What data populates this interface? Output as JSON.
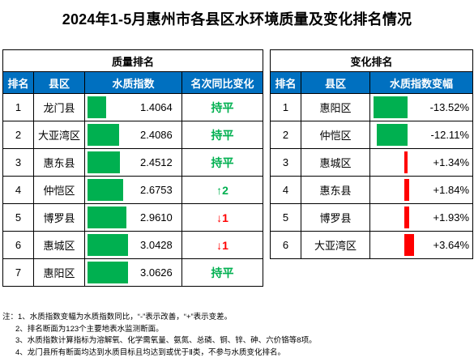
{
  "title": "2024年1-5月惠州市各县区水环境质量及变化排名情况",
  "colors": {
    "header_bg": "#0070c0",
    "bar_green": "#00b050",
    "bar_red": "#ff0000",
    "text_flat": "#00b050",
    "text_down": "#ff0000"
  },
  "left": {
    "section": "质量排名",
    "headers": [
      "排名",
      "县区",
      "水质指数",
      "名次同比变化"
    ],
    "rows": [
      {
        "rank": "1",
        "district": "龙门县",
        "index": "1.4064",
        "value": 1.4064,
        "change": "持平",
        "change_type": "flat"
      },
      {
        "rank": "2",
        "district": "大亚湾区",
        "index": "2.4086",
        "value": 2.4086,
        "change": "持平",
        "change_type": "flat"
      },
      {
        "rank": "3",
        "district": "惠东县",
        "index": "2.4512",
        "value": 2.4512,
        "change": "持平",
        "change_type": "flat"
      },
      {
        "rank": "4",
        "district": "仲恺区",
        "index": "2.6753",
        "value": 2.6753,
        "change": "↑2",
        "change_type": "up"
      },
      {
        "rank": "5",
        "district": "博罗县",
        "index": "2.9610",
        "value": 2.961,
        "change": "↓1",
        "change_type": "down"
      },
      {
        "rank": "6",
        "district": "惠城区",
        "index": "3.0428",
        "value": 3.0428,
        "change": "↓1",
        "change_type": "down"
      },
      {
        "rank": "7",
        "district": "惠阳区",
        "index": "3.0626",
        "value": 3.0626,
        "change": "持平",
        "change_type": "flat"
      }
    ]
  },
  "right": {
    "section": "变化排名",
    "headers": [
      "排名",
      "县区",
      "水质指数变幅"
    ],
    "rows": [
      {
        "rank": "1",
        "district": "惠阳区",
        "change": "-13.52%",
        "value": -13.52
      },
      {
        "rank": "2",
        "district": "仲恺区",
        "change": "-12.11%",
        "value": -12.11
      },
      {
        "rank": "3",
        "district": "惠城区",
        "change": "+1.34%",
        "value": 1.34
      },
      {
        "rank": "4",
        "district": "惠东县",
        "change": "+1.84%",
        "value": 1.84
      },
      {
        "rank": "5",
        "district": "博罗县",
        "change": "+1.93%",
        "value": 1.93
      },
      {
        "rank": "6",
        "district": "大亚湾区",
        "change": "+3.64%",
        "value": 3.64
      }
    ]
  },
  "notes": [
    "注：1、水质指数变幅为水质指数同比，“-”表示改善，“+”表示变差。",
    "2、排名断面为123个主要地表水监测断面。",
    "3、水质指数计算指标为溶解氧、化学需氧量、氨氮、总磷、铜、锌、砷、六价铬等8项。",
    "4、龙门县所有断面均达到水质目标且均达到或优于Ⅱ类，不参与水质变化排名。"
  ]
}
